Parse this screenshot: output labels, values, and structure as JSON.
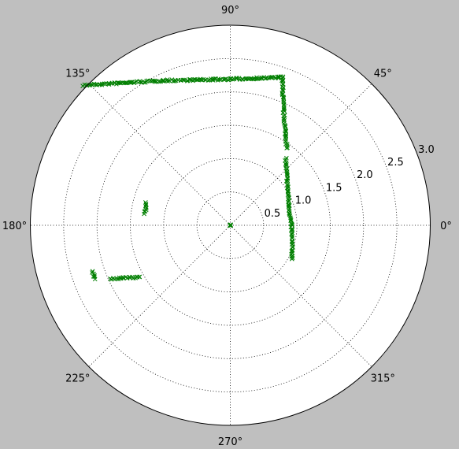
{
  "chart_data": {
    "type": "scatter",
    "projection": "polar",
    "marker": "x",
    "marker_color": "#007f00",
    "background": "#bfbfbf",
    "plot_background": "#ffffff",
    "grid": true,
    "grid_style": "dotted",
    "r_max": 3.0,
    "r_ticks": [
      0.5,
      1.0,
      1.5,
      2.0,
      2.5,
      3.0
    ],
    "r_tick_labels": [
      "0.5",
      "1.0",
      "1.5",
      "2.0",
      "2.5",
      "3.0"
    ],
    "theta_ticks": [
      0,
      45,
      90,
      135,
      180,
      225,
      270,
      315
    ],
    "theta_tick_labels": [
      "0°",
      "45°",
      "90°",
      "135°",
      "180°",
      "225°",
      "270°",
      "315°"
    ],
    "x_segments": [
      [
        [
          -2.2,
          2.1
        ],
        [
          -1.0,
          2.17
        ],
        [
          0.0,
          2.19
        ],
        [
          0.8,
          2.22
        ]
      ],
      [
        [
          0.78,
          2.18
        ],
        [
          0.8,
          1.7
        ],
        [
          0.85,
          1.15
        ]
      ],
      [
        [
          0.83,
          1.0
        ],
        [
          0.88,
          0.3
        ],
        [
          0.92,
          -0.05
        ],
        [
          0.93,
          -0.51
        ]
      ],
      [
        [
          -1.26,
          0.34
        ],
        [
          -1.28,
          0.18
        ]
      ],
      [
        [
          -1.35,
          -0.78
        ],
        [
          -1.8,
          -0.8
        ]
      ],
      [
        [
          -2.07,
          -0.7
        ],
        [
          -2.03,
          -0.8
        ]
      ]
    ],
    "points_at_origin": true
  }
}
